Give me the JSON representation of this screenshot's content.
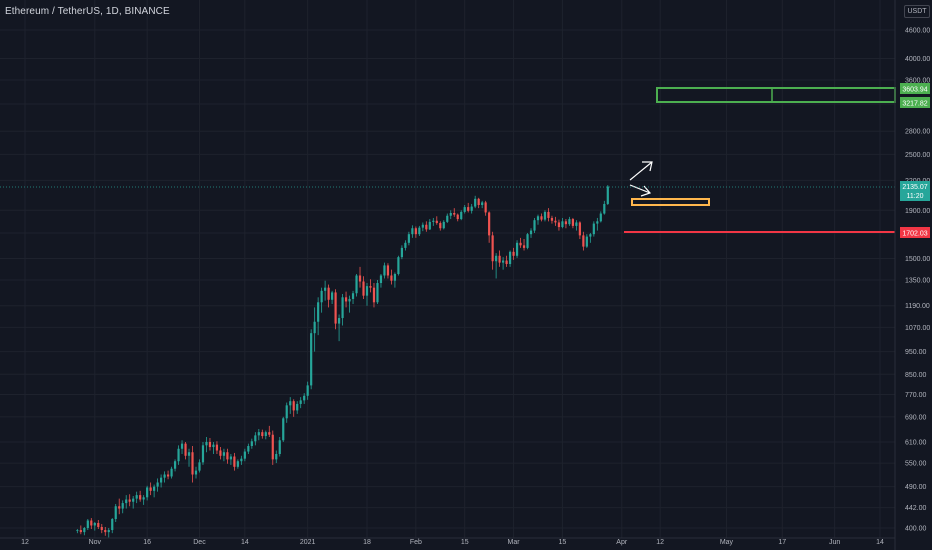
{
  "header": {
    "symbol": "Ethereum / TetherUS, 1D, BINANCE"
  },
  "price_axis": {
    "currency": "USDT",
    "ticks": [
      "4600.00",
      "4000.00",
      "3600.00",
      "3200.00",
      "2800.00",
      "2500.00",
      "2200.00",
      "1900.00",
      "1700.00",
      "1500.00",
      "1350.00",
      "1190.00",
      "1070.00",
      "950.00",
      "850.00",
      "770.00",
      "690.00",
      "610.00",
      "550.00",
      "490.00",
      "442.00",
      "400.00"
    ]
  },
  "time_axis": {
    "ticks": [
      "12",
      "Nov",
      "16",
      "Dec",
      "14",
      "2021",
      "18",
      "Feb",
      "15",
      "Mar",
      "15",
      "Apr",
      "12",
      "May",
      "17",
      "Jun",
      "14"
    ]
  },
  "levels": {
    "target_upper": "3603.94",
    "target_lower": "3217.82",
    "support": "1702.03",
    "last_price": "2135.07",
    "countdown": "11:20"
  },
  "colors": {
    "background": "#131722",
    "up": "#26a69a",
    "down": "#ef5350",
    "target_box": "#4caf50",
    "support_line": "#f23645",
    "entry_box": "#ffb74d",
    "arrows": "#ffffff",
    "grid": "#1e222d"
  },
  "chart_data": {
    "type": "candlestick",
    "title": "Ethereum / TetherUS, 1D, BINANCE",
    "scale": "log",
    "ylim": [
      395,
      5000
    ],
    "x_range": [
      "2020-10-04",
      "2021-06-22"
    ],
    "grid": true,
    "start_date": "2020-10-27",
    "ohlc": [
      [
        395,
        398,
        390,
        396
      ],
      [
        396,
        405,
        388,
        392
      ],
      [
        392,
        402,
        386,
        400
      ],
      [
        400,
        418,
        396,
        415
      ],
      [
        415,
        420,
        398,
        405
      ],
      [
        405,
        412,
        395,
        410
      ],
      [
        410,
        416,
        398,
        402
      ],
      [
        402,
        408,
        390,
        396
      ],
      [
        396,
        402,
        385,
        392
      ],
      [
        392,
        400,
        382,
        396
      ],
      [
        396,
        420,
        390,
        418
      ],
      [
        418,
        450,
        412,
        445
      ],
      [
        445,
        462,
        428,
        440
      ],
      [
        440,
        458,
        430,
        452
      ],
      [
        452,
        470,
        440,
        460
      ],
      [
        460,
        472,
        445,
        455
      ],
      [
        455,
        468,
        440,
        462
      ],
      [
        462,
        478,
        452,
        470
      ],
      [
        470,
        480,
        455,
        460
      ],
      [
        460,
        470,
        448,
        465
      ],
      [
        465,
        492,
        458,
        488
      ],
      [
        488,
        500,
        470,
        480
      ],
      [
        480,
        495,
        465,
        490
      ],
      [
        490,
        510,
        478,
        500
      ],
      [
        500,
        520,
        488,
        512
      ],
      [
        512,
        528,
        500,
        520
      ],
      [
        520,
        530,
        508,
        515
      ],
      [
        515,
        540,
        510,
        535
      ],
      [
        535,
        560,
        528,
        555
      ],
      [
        555,
        600,
        545,
        590
      ],
      [
        590,
        615,
        575,
        605
      ],
      [
        605,
        610,
        560,
        570
      ],
      [
        570,
        590,
        540,
        580
      ],
      [
        580,
        598,
        500,
        520
      ],
      [
        520,
        540,
        510,
        530
      ],
      [
        530,
        560,
        525,
        552
      ],
      [
        552,
        610,
        545,
        600
      ],
      [
        600,
        625,
        580,
        610
      ],
      [
        610,
        622,
        585,
        595
      ],
      [
        595,
        610,
        575,
        602
      ],
      [
        602,
        612,
        575,
        585
      ],
      [
        585,
        595,
        560,
        570
      ],
      [
        570,
        590,
        555,
        580
      ],
      [
        580,
        590,
        548,
        560
      ],
      [
        560,
        575,
        545,
        568
      ],
      [
        568,
        578,
        530,
        540
      ],
      [
        540,
        560,
        535,
        555
      ],
      [
        555,
        570,
        545,
        562
      ],
      [
        562,
        590,
        555,
        582
      ],
      [
        582,
        605,
        575,
        598
      ],
      [
        598,
        620,
        590,
        612
      ],
      [
        612,
        640,
        600,
        630
      ],
      [
        630,
        650,
        615,
        640
      ],
      [
        640,
        648,
        620,
        628
      ],
      [
        628,
        645,
        618,
        640
      ],
      [
        640,
        660,
        625,
        632
      ],
      [
        632,
        645,
        545,
        560
      ],
      [
        560,
        585,
        550,
        575
      ],
      [
        575,
        625,
        568,
        615
      ],
      [
        615,
        690,
        610,
        685
      ],
      [
        685,
        740,
        670,
        730
      ],
      [
        730,
        760,
        700,
        745
      ],
      [
        745,
        752,
        690,
        712
      ],
      [
        712,
        745,
        700,
        735
      ],
      [
        735,
        760,
        720,
        748
      ],
      [
        748,
        775,
        735,
        765
      ],
      [
        765,
        820,
        750,
        805
      ],
      [
        805,
        1060,
        790,
        1040
      ],
      [
        1040,
        1180,
        950,
        1100
      ],
      [
        1100,
        1240,
        1030,
        1210
      ],
      [
        1210,
        1300,
        1150,
        1280
      ],
      [
        1280,
        1345,
        1220,
        1300
      ],
      [
        1300,
        1320,
        1180,
        1225
      ],
      [
        1225,
        1280,
        1200,
        1270
      ],
      [
        1270,
        1290,
        1060,
        1090
      ],
      [
        1090,
        1140,
        1000,
        1120
      ],
      [
        1120,
        1260,
        1080,
        1240
      ],
      [
        1240,
        1275,
        1180,
        1215
      ],
      [
        1215,
        1250,
        1150,
        1230
      ],
      [
        1230,
        1280,
        1200,
        1265
      ],
      [
        1265,
        1390,
        1245,
        1380
      ],
      [
        1380,
        1440,
        1300,
        1340
      ],
      [
        1340,
        1375,
        1230,
        1250
      ],
      [
        1250,
        1330,
        1190,
        1310
      ],
      [
        1310,
        1355,
        1270,
        1300
      ],
      [
        1300,
        1330,
        1180,
        1210
      ],
      [
        1210,
        1350,
        1200,
        1330
      ],
      [
        1330,
        1390,
        1300,
        1380
      ],
      [
        1380,
        1470,
        1360,
        1450
      ],
      [
        1450,
        1465,
        1360,
        1380
      ],
      [
        1380,
        1420,
        1320,
        1345
      ],
      [
        1345,
        1400,
        1300,
        1390
      ],
      [
        1390,
        1520,
        1380,
        1510
      ],
      [
        1510,
        1600,
        1495,
        1580
      ],
      [
        1580,
        1640,
        1560,
        1620
      ],
      [
        1620,
        1710,
        1600,
        1690
      ],
      [
        1690,
        1765,
        1660,
        1740
      ],
      [
        1740,
        1755,
        1660,
        1690
      ],
      [
        1690,
        1760,
        1675,
        1745
      ],
      [
        1745,
        1790,
        1715,
        1770
      ],
      [
        1770,
        1800,
        1710,
        1730
      ],
      [
        1730,
        1820,
        1725,
        1795
      ],
      [
        1795,
        1830,
        1760,
        1805
      ],
      [
        1805,
        1845,
        1770,
        1785
      ],
      [
        1785,
        1800,
        1720,
        1740
      ],
      [
        1740,
        1810,
        1730,
        1795
      ],
      [
        1795,
        1870,
        1785,
        1850
      ],
      [
        1850,
        1900,
        1820,
        1875
      ],
      [
        1875,
        1920,
        1840,
        1860
      ],
      [
        1860,
        1870,
        1800,
        1820
      ],
      [
        1820,
        1900,
        1810,
        1885
      ],
      [
        1885,
        1950,
        1870,
        1930
      ],
      [
        1930,
        1970,
        1880,
        1895
      ],
      [
        1895,
        1960,
        1870,
        1935
      ],
      [
        1935,
        2040,
        1920,
        2010
      ],
      [
        2010,
        2020,
        1920,
        1950
      ],
      [
        1950,
        1990,
        1920,
        1975
      ],
      [
        1975,
        1990,
        1850,
        1880
      ],
      [
        1880,
        1890,
        1620,
        1680
      ],
      [
        1680,
        1710,
        1420,
        1480
      ],
      [
        1480,
        1540,
        1360,
        1520
      ],
      [
        1520,
        1560,
        1440,
        1470
      ],
      [
        1470,
        1510,
        1420,
        1485
      ],
      [
        1485,
        1520,
        1440,
        1460
      ],
      [
        1460,
        1560,
        1440,
        1550
      ],
      [
        1550,
        1580,
        1490,
        1520
      ],
      [
        1520,
        1640,
        1505,
        1620
      ],
      [
        1620,
        1660,
        1580,
        1600
      ],
      [
        1600,
        1650,
        1560,
        1580
      ],
      [
        1580,
        1700,
        1570,
        1690
      ],
      [
        1690,
        1740,
        1660,
        1720
      ],
      [
        1720,
        1830,
        1700,
        1810
      ],
      [
        1810,
        1860,
        1770,
        1845
      ],
      [
        1845,
        1870,
        1800,
        1815
      ],
      [
        1815,
        1900,
        1800,
        1885
      ],
      [
        1885,
        1920,
        1800,
        1830
      ],
      [
        1830,
        1850,
        1780,
        1805
      ],
      [
        1805,
        1840,
        1760,
        1790
      ],
      [
        1790,
        1815,
        1720,
        1750
      ],
      [
        1750,
        1830,
        1740,
        1800
      ],
      [
        1800,
        1820,
        1740,
        1775
      ],
      [
        1775,
        1840,
        1760,
        1820
      ],
      [
        1820,
        1830,
        1740,
        1760
      ],
      [
        1760,
        1810,
        1720,
        1790
      ],
      [
        1790,
        1800,
        1650,
        1680
      ],
      [
        1680,
        1710,
        1560,
        1590
      ],
      [
        1590,
        1690,
        1580,
        1670
      ],
      [
        1670,
        1700,
        1620,
        1690
      ],
      [
        1690,
        1800,
        1670,
        1780
      ],
      [
        1780,
        1830,
        1720,
        1800
      ],
      [
        1800,
        1890,
        1790,
        1870
      ],
      [
        1870,
        1990,
        1860,
        1960
      ],
      [
        1960,
        2150,
        1950,
        2135
      ]
    ]
  }
}
